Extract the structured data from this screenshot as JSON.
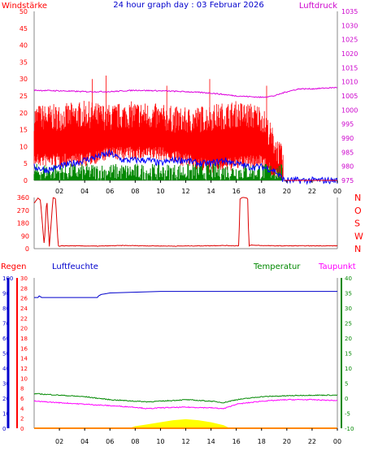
{
  "header": {
    "title": "24 hour graph day : 03 Februar 2026",
    "left_label": "Windstärke",
    "right_label": "Luftdruck"
  },
  "colors": {
    "title": "#0000cc",
    "wind_axis": "#ff0000",
    "pressure_axis": "#cc00cc",
    "wind_gust": "#ff0000",
    "wind_avg": "#0000ff",
    "wind_low": "#008800",
    "pressure": "#dd00dd",
    "direction": "#dd0000",
    "humidity": "#0000cc",
    "temperature": "#008800",
    "dewpoint": "#ff00ff",
    "rain": "#ff8800",
    "sun": "#ffff00"
  },
  "chart_data": [
    {
      "type": "line",
      "name_key": "wind_pressure",
      "left_axis": {
        "label": "Windstärke",
        "ticks": [
          0,
          5,
          10,
          15,
          20,
          25,
          30,
          35,
          40,
          45,
          50
        ],
        "range": [
          0,
          50
        ]
      },
      "right_axis": {
        "label": "Luftdruck",
        "ticks": [
          975,
          980,
          985,
          990,
          995,
          1000,
          1005,
          1010,
          1015,
          1020,
          1025,
          1030,
          1035
        ],
        "range": [
          975,
          1035
        ]
      },
      "x_ticks": [
        "02",
        "04",
        "06",
        "08",
        "10",
        "12",
        "14",
        "16",
        "18",
        "20",
        "22",
        "00"
      ],
      "x_range": [
        0,
        24
      ],
      "wind_gust_band": {
        "x": [
          0,
          2,
          4,
          6,
          8,
          10,
          12,
          14,
          16,
          18,
          19.7
        ],
        "low": [
          8,
          8,
          8,
          10,
          10,
          10,
          8,
          6,
          7,
          8,
          1
        ],
        "high": [
          17,
          17,
          18,
          17,
          18,
          17,
          16,
          17,
          18,
          17,
          4
        ],
        "peaks": [
          [
            0.4,
            20
          ],
          [
            4.6,
            30
          ],
          [
            5.7,
            31
          ],
          [
            10.5,
            28
          ],
          [
            13.9,
            30
          ],
          [
            18.4,
            28
          ]
        ]
      },
      "wind_avg": {
        "x": [
          0,
          1,
          2,
          3,
          4,
          5,
          6,
          7,
          8,
          9,
          10,
          11,
          12,
          13,
          14,
          15,
          16,
          17,
          18,
          19,
          19.8,
          24
        ],
        "y": [
          4,
          3,
          4,
          5,
          6,
          7,
          8,
          6,
          6,
          6,
          5,
          6,
          6,
          5,
          5,
          6,
          5,
          4,
          4,
          3,
          0,
          0
        ]
      },
      "wind_low_band": {
        "x": [
          0,
          19.6
        ],
        "low": [
          0,
          0
        ],
        "high": [
          5,
          5
        ]
      },
      "pressure": {
        "x": [
          0,
          2,
          4,
          6,
          8,
          10,
          12,
          14,
          16,
          18,
          19,
          20,
          21,
          22,
          24
        ],
        "y": [
          1007,
          1006.8,
          1006.5,
          1006.5,
          1007,
          1006.8,
          1006.5,
          1006,
          1005,
          1004.5,
          1005,
          1006.5,
          1007.5,
          1007.5,
          1008
        ]
      }
    },
    {
      "type": "line",
      "name_key": "direction",
      "left_axis": {
        "ticks": [
          0,
          90,
          180,
          270,
          360
        ],
        "range": [
          0,
          360
        ]
      },
      "right_labels": [
        "N",
        "W",
        "S",
        "O",
        "N"
      ],
      "x_range": [
        0,
        24
      ],
      "direction": {
        "x": [
          0,
          0.3,
          0.5,
          0.8,
          1.0,
          1.2,
          1.5,
          1.7,
          1.9,
          2.0,
          2.2,
          3,
          5,
          7,
          9,
          11,
          13,
          15,
          16.2,
          16.3,
          16.5,
          16.9,
          17.0,
          17.2,
          18,
          19,
          20,
          24
        ],
        "y": [
          320,
          355,
          340,
          20,
          360,
          10,
          360,
          350,
          20,
          15,
          20,
          20,
          18,
          22,
          20,
          18,
          20,
          22,
          20,
          350,
          360,
          355,
          20,
          25,
          22,
          20,
          20,
          20
        ]
      }
    },
    {
      "type": "line",
      "name_key": "humidity_temp",
      "labels": {
        "rain": "Regen",
        "humidity": "Luftfeuchte",
        "temperature": "Temperatur",
        "dewpoint": "Taupunkt"
      },
      "humidity_axis": {
        "ticks": [
          0,
          10,
          20,
          30,
          40,
          50,
          60,
          70,
          80,
          90,
          100
        ],
        "range": [
          0,
          100
        ]
      },
      "rain_axis": {
        "ticks": [
          0,
          2,
          4,
          6,
          8,
          10,
          12,
          14,
          16,
          18,
          20,
          22,
          24,
          26,
          28,
          30
        ],
        "range": [
          0,
          30
        ]
      },
      "temp_axis": {
        "ticks": [
          -10,
          -5,
          0,
          5,
          10,
          15,
          20,
          25,
          30,
          35,
          40
        ],
        "range": [
          -10,
          40
        ]
      },
      "dewpoint_axis": {
        "ticks": [
          -10,
          -5,
          0,
          5,
          10,
          15,
          20,
          25,
          30,
          35,
          40
        ],
        "range": [
          -10,
          40
        ]
      },
      "x_ticks": [
        "02",
        "04",
        "06",
        "08",
        "10",
        "12",
        "14",
        "16",
        "18",
        "20",
        "22",
        "00"
      ],
      "x_range": [
        0,
        24
      ],
      "humidity": {
        "x": [
          0,
          0.3,
          0.4,
          0.6,
          1,
          5,
          5.1,
          5.3,
          6,
          10,
          14,
          18,
          24
        ],
        "y": [
          87,
          87,
          88,
          87,
          87,
          87,
          88,
          89,
          90,
          91,
          91,
          91,
          91
        ]
      },
      "temperature": {
        "x": [
          0,
          2,
          4,
          6,
          8,
          9,
          10,
          12,
          14,
          15,
          16,
          18,
          20,
          22,
          24
        ],
        "y": [
          1.5,
          1,
          0.5,
          -0.5,
          -1,
          -1.2,
          -1,
          -0.5,
          -1,
          -1.5,
          -0.5,
          0.5,
          0.8,
          1,
          1
        ]
      },
      "dewpoint": {
        "x": [
          0,
          2,
          4,
          6,
          8,
          9,
          10,
          12,
          14,
          15,
          16,
          18,
          20,
          22,
          24
        ],
        "y": [
          -1,
          -1.5,
          -2,
          -2.5,
          -3,
          -3.5,
          -3.2,
          -3,
          -3.2,
          -3.5,
          -2,
          -1,
          -0.5,
          -0.5,
          -0.8
        ]
      },
      "rain": {
        "x": [
          0,
          24
        ],
        "y": [
          0,
          0
        ]
      },
      "sun": {
        "x": [
          7.5,
          8,
          9,
          10,
          11,
          12,
          13,
          14,
          15,
          15.5
        ],
        "y": [
          0,
          0.4,
          0.8,
          1.2,
          1.6,
          1.8,
          1.6,
          1.2,
          0.6,
          0
        ]
      }
    }
  ]
}
